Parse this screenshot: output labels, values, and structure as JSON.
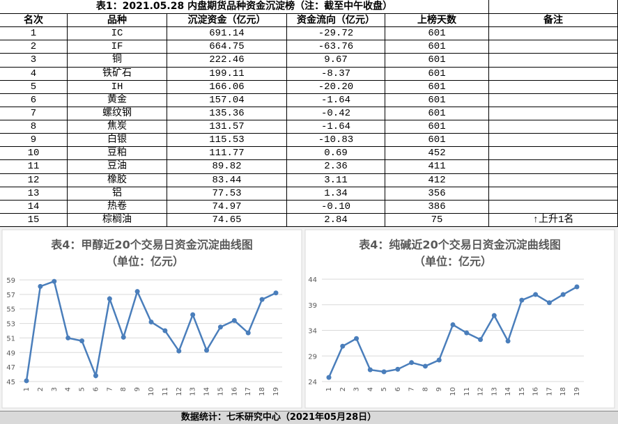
{
  "table": {
    "title": "表1：2021.05.28 内盘期货品种资金沉淀榜（注：截至中午收盘）",
    "headers": [
      "名次",
      "品种",
      "沉淀资金（亿元）",
      "资金流向（亿元）",
      "上榜天数",
      "备注"
    ],
    "rows": [
      [
        "1",
        "IC",
        "691.14",
        "-29.72",
        "601"
      ],
      [
        "2",
        "IF",
        "664.75",
        "-63.76",
        "601"
      ],
      [
        "3",
        "铜",
        "222.46",
        "9.67",
        "601"
      ],
      [
        "4",
        "铁矿石",
        "199.11",
        "-8.37",
        "601"
      ],
      [
        "5",
        "IH",
        "166.06",
        "-20.20",
        "601"
      ],
      [
        "6",
        "黄金",
        "157.04",
        "-1.64",
        "601"
      ],
      [
        "7",
        "螺纹钢",
        "135.36",
        "-0.42",
        "601"
      ],
      [
        "8",
        "焦炭",
        "131.57",
        "-1.64",
        "601"
      ],
      [
        "9",
        "白银",
        "115.53",
        "-10.83",
        "601"
      ],
      [
        "10",
        "豆粕",
        "111.77",
        "0.69",
        "452"
      ],
      [
        "11",
        "豆油",
        "89.82",
        "2.36",
        "411"
      ],
      [
        "12",
        "橡胶",
        "83.44",
        "3.11",
        "412"
      ],
      [
        "13",
        "铝",
        "77.53",
        "1.34",
        "356"
      ],
      [
        "14",
        "热卷",
        "74.97",
        "-0.10",
        "386"
      ],
      [
        "15",
        "棕榈油",
        "74.65",
        "2.84",
        "75",
        "↑上升1名"
      ]
    ]
  },
  "chart_data": [
    {
      "type": "line",
      "title": "表4：甲醇近20个交易日资金沉淀曲线图",
      "subtitle": "（单位：亿元）",
      "categories": [
        "1",
        "2",
        "3",
        "4",
        "5",
        "6",
        "7",
        "8",
        "9",
        "10",
        "11",
        "12",
        "13",
        "14",
        "15",
        "16",
        "17",
        "18",
        "19"
      ],
      "series": [
        {
          "color": "#4a7ebb",
          "values": [
            45.1,
            58.1,
            58.8,
            51.0,
            50.6,
            45.8,
            56.4,
            51.1,
            57.4,
            53.2,
            52.0,
            49.2,
            54.2,
            49.3,
            52.5,
            53.4,
            51.7,
            56.3,
            57.2
          ]
        }
      ],
      "ylim": [
        45,
        59
      ],
      "yticks": [
        45,
        47,
        49,
        51,
        53,
        55,
        57,
        59
      ],
      "grid": true
    },
    {
      "type": "line",
      "title": "表4：纯碱近20个交易日资金沉淀曲线图",
      "subtitle": "（单位：亿元）",
      "categories": [
        "1",
        "2",
        "3",
        "4",
        "5",
        "6",
        "7",
        "8",
        "9",
        "10",
        "11",
        "12",
        "13",
        "14",
        "15",
        "16",
        "17",
        "18",
        "19"
      ],
      "series": [
        {
          "color": "#4a7ebb",
          "values": [
            24.8,
            30.9,
            32.4,
            26.3,
            25.9,
            26.4,
            27.7,
            27.0,
            28.2,
            35.1,
            33.5,
            32.2,
            36.9,
            31.9,
            39.9,
            41.0,
            39.4,
            41.0,
            42.5
          ]
        }
      ],
      "ylim": [
        24,
        44
      ],
      "yticks": [
        24,
        29,
        34,
        39,
        44
      ],
      "grid": true
    }
  ],
  "footer": "数据统计：七禾研究中心（2021年05月28日）"
}
